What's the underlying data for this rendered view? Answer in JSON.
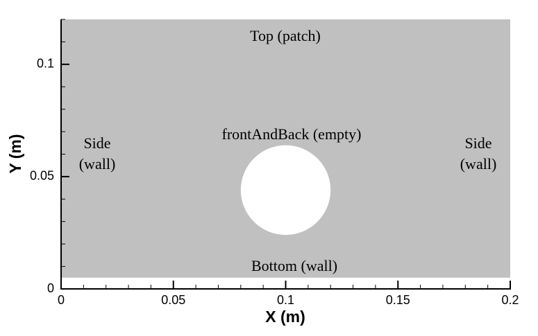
{
  "chart_data": {
    "type": "geometry",
    "xlabel": "X (m)",
    "ylabel": "Y (m)",
    "xlim": [
      0,
      0.2
    ],
    "ylim": [
      0,
      0.12
    ],
    "xticks": [
      0,
      0.05,
      0.1,
      0.15,
      0.2
    ],
    "yticks": [
      0,
      0.05,
      0.1
    ],
    "rectangle": {
      "x": [
        0,
        0.2
      ],
      "y": [
        0.005,
        0.12
      ],
      "color": "#c0c0c0"
    },
    "circle": {
      "center": [
        0.1,
        0.044
      ],
      "radius": 0.02,
      "color": "#ffffff"
    },
    "annotations": [
      "Top (patch)",
      "frontAndBack (empty)",
      "Side (wall)",
      "Side (wall)",
      "Bottom (wall)"
    ]
  }
}
